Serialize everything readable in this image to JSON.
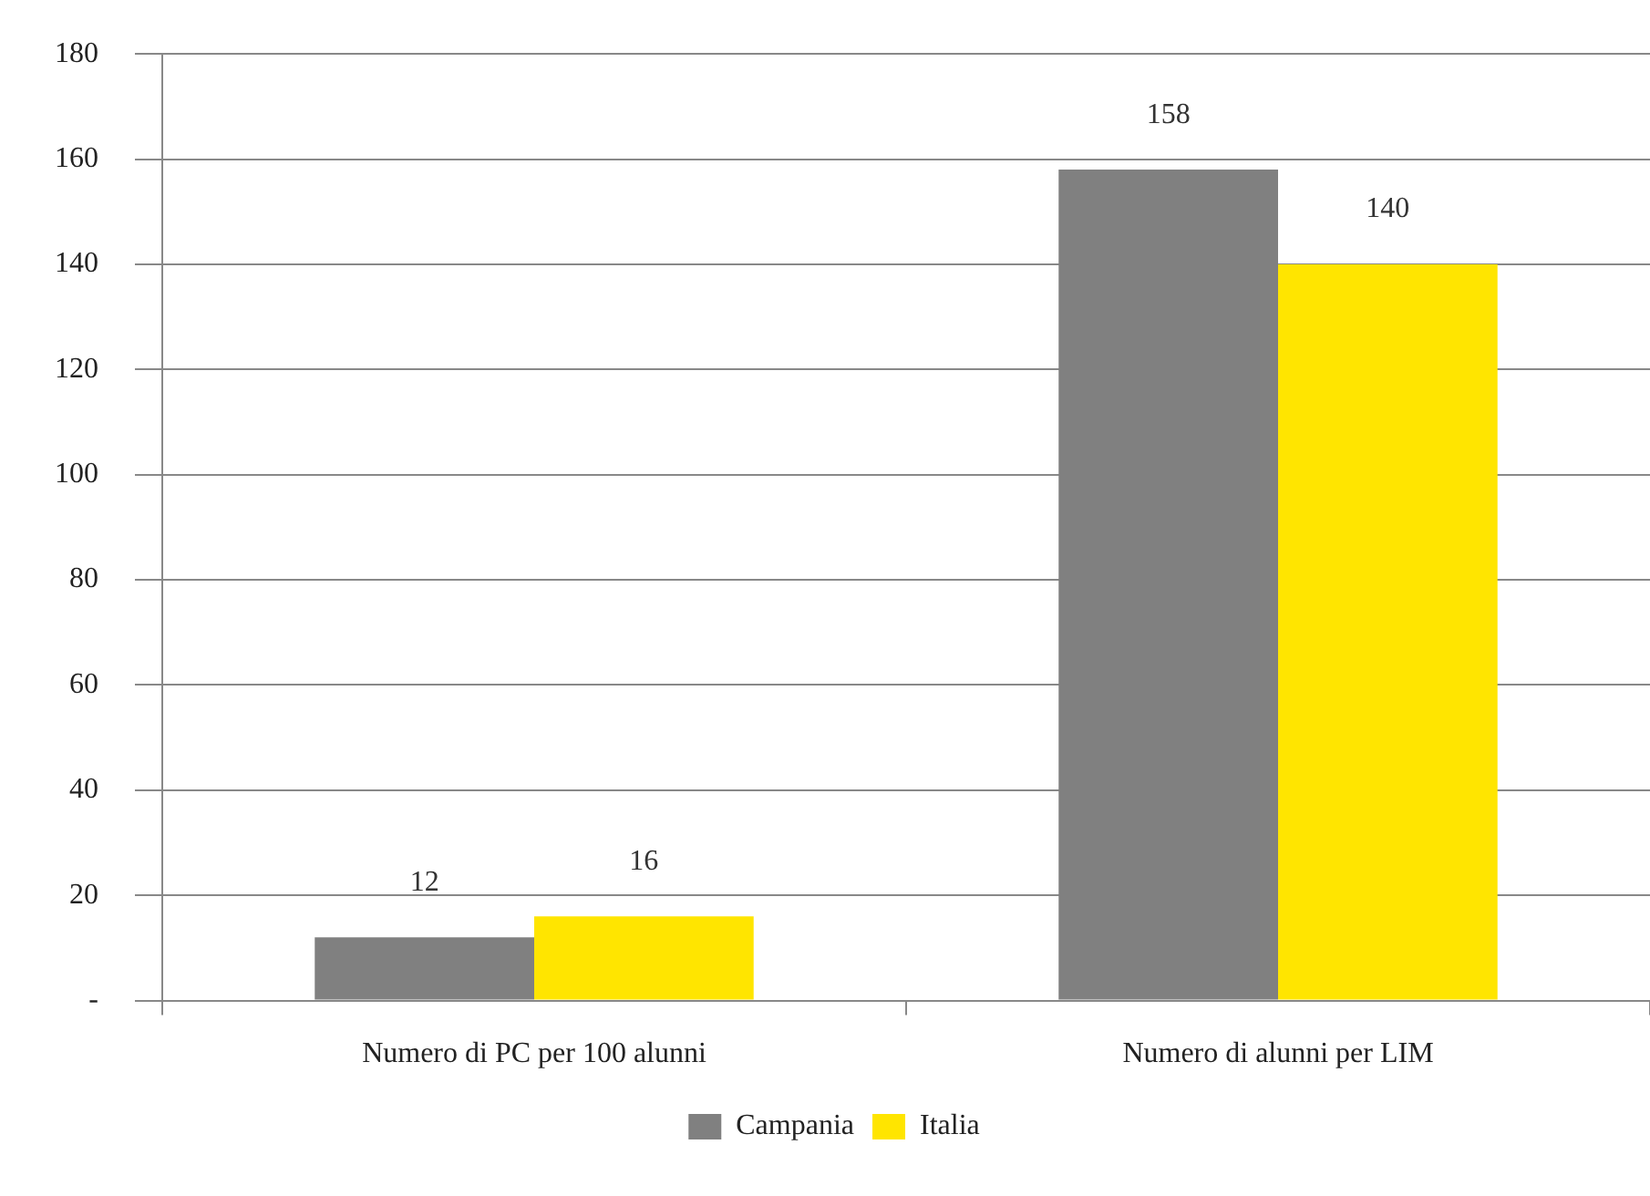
{
  "chart_data": {
    "type": "bar",
    "categories": [
      "Numero di PC per 100 alunni",
      "Numero di alunni per LIM"
    ],
    "series": [
      {
        "name": "Campania",
        "color": "#808080",
        "values": [
          12,
          158
        ]
      },
      {
        "name": "Italia",
        "color": "#ffe500",
        "values": [
          16,
          140
        ]
      }
    ],
    "ylim": [
      0,
      180
    ],
    "yticks": [
      {
        "value": 0,
        "label": "-"
      },
      20,
      40,
      60,
      80,
      100,
      120,
      140,
      160,
      180
    ],
    "grid": "y",
    "legend": "bottom",
    "data_labels": true
  }
}
